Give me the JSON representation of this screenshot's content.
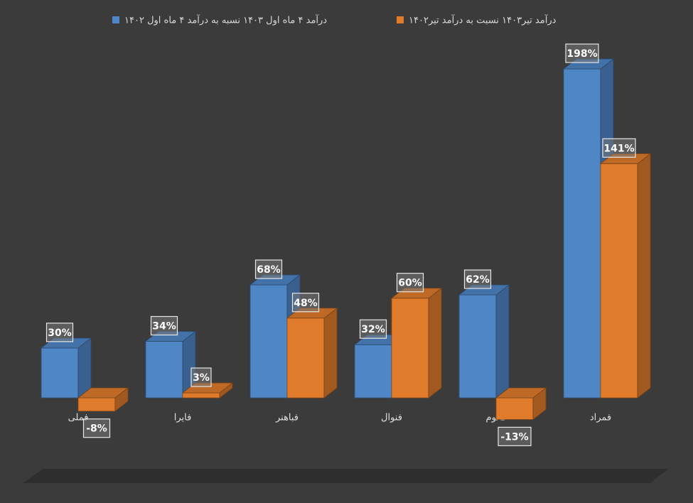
{
  "chart_data": {
    "type": "bar3d",
    "categories": [
      "فملی",
      "فایرا",
      "فباهنر",
      "فنوال",
      "فالوم",
      "فمراد"
    ],
    "series": [
      {
        "name": "درآمد ۴ ماه اول ۱۴۰۳ نسبه به درآمد ۴ ماه اول ۱۴۰۲",
        "color": "#4f86c6",
        "values": [
          30,
          34,
          68,
          32,
          62,
          198
        ],
        "value_labels": [
          "30%",
          "34%",
          "68%",
          "32%",
          "62%",
          "198%"
        ]
      },
      {
        "name": "درآمد تیر۱۴۰۳ نسبت به درآمد تیر۱۴۰۲",
        "color": "#e07b2c",
        "values": [
          -8,
          3,
          48,
          60,
          -13,
          141
        ],
        "value_labels": [
          "-8%",
          "3%",
          "48%",
          "60%",
          "-13%",
          "141%"
        ]
      }
    ]
  }
}
